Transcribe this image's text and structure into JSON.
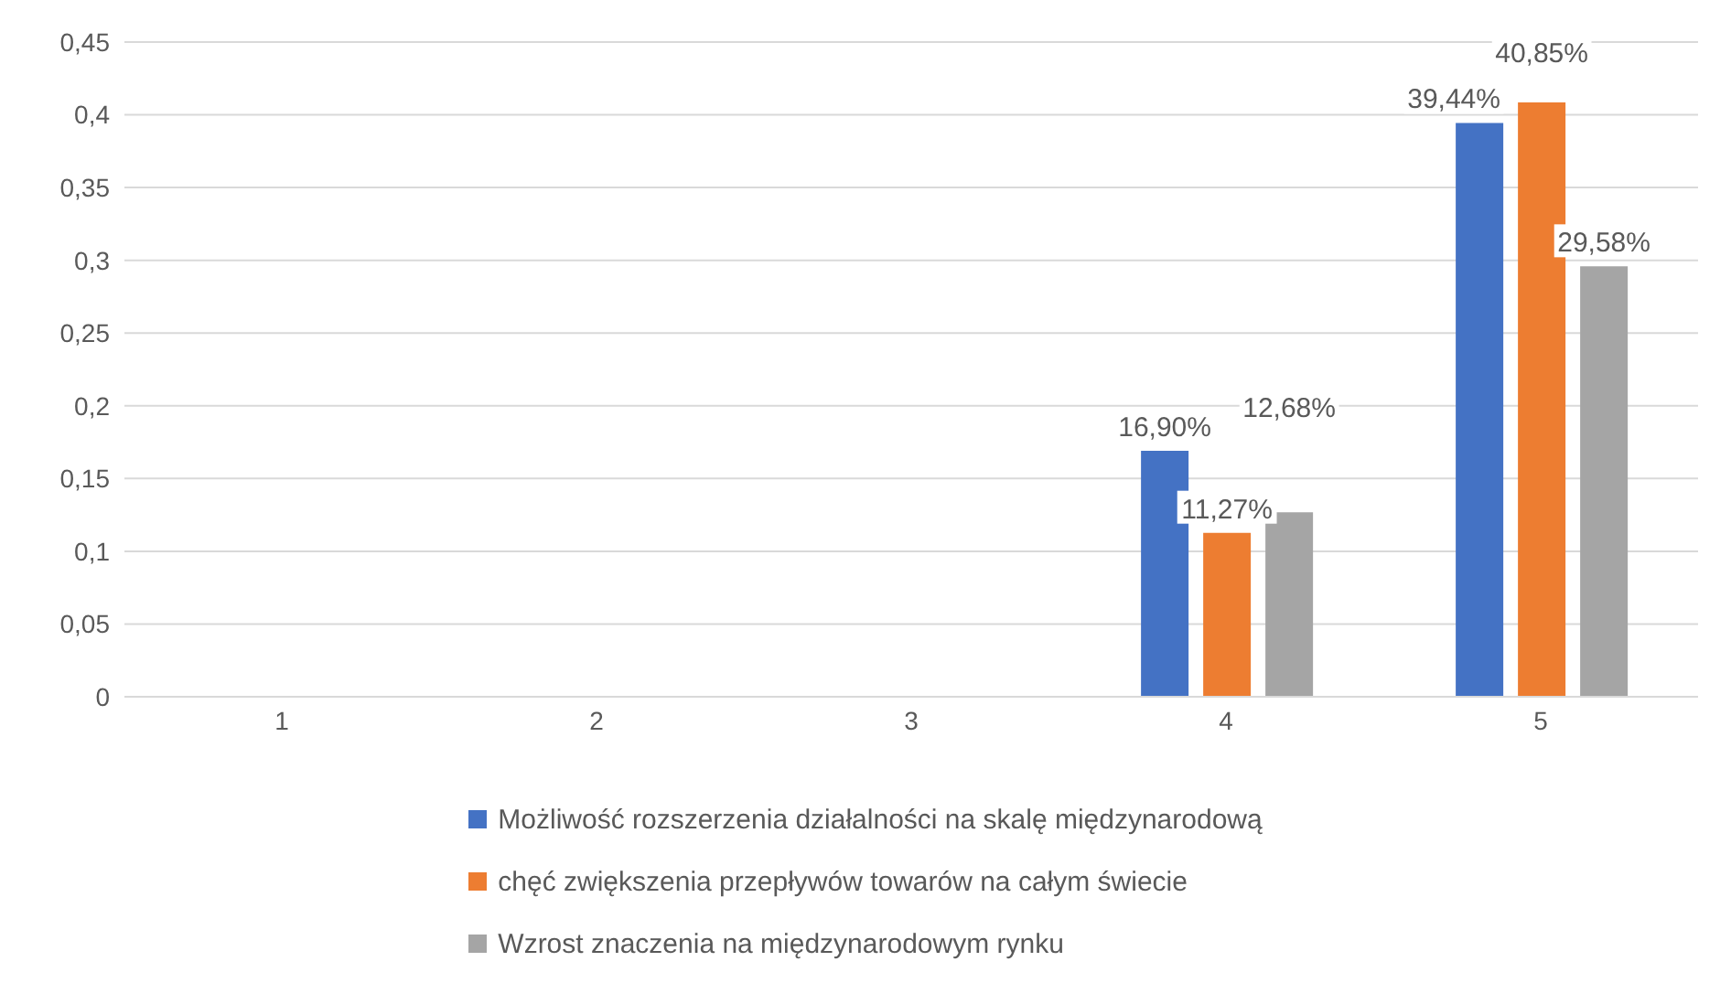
{
  "chart_data": {
    "type": "bar",
    "categories": [
      "1",
      "2",
      "3",
      "4",
      "5"
    ],
    "series": [
      {
        "name": "Możliwość rozszerzenia działalności na skalę międzynarodową",
        "color": "#4472c4",
        "values": [
          0,
          0,
          0,
          0.169,
          0.3944
        ],
        "value_labels": [
          null,
          null,
          null,
          "16,90%",
          "39,44%"
        ]
      },
      {
        "name": "chęć zwiększenia przepływów towarów na całym świecie",
        "color": "#ed7d31",
        "values": [
          0,
          0,
          0,
          0.1127,
          0.4085
        ],
        "value_labels": [
          null,
          null,
          null,
          "11,27%",
          "40,85%"
        ]
      },
      {
        "name": "Wzrost znaczenia na międzynarodowym rynku",
        "color": "#a5a5a5",
        "values": [
          0,
          0,
          0,
          0.1268,
          0.2958
        ],
        "value_labels": [
          null,
          null,
          null,
          "12,68%",
          "29,58%"
        ]
      }
    ],
    "ylim": [
      0,
      0.45
    ],
    "yticks": [
      0,
      {
        "value": 0.05,
        "label": "0,05"
      },
      {
        "value": 0.1,
        "label": "0,1"
      },
      {
        "value": 0.15,
        "label": "0,15"
      },
      {
        "value": 0.2,
        "label": "0,2"
      },
      {
        "value": 0.25,
        "label": "0,25"
      },
      {
        "value": 0.3,
        "label": "0,3"
      },
      {
        "value": 0.35,
        "label": "0,35"
      },
      {
        "value": 0.4,
        "label": "0,4"
      },
      {
        "value": 0.45,
        "label": "0,45"
      }
    ],
    "grid": "y",
    "legend": "bottom"
  }
}
